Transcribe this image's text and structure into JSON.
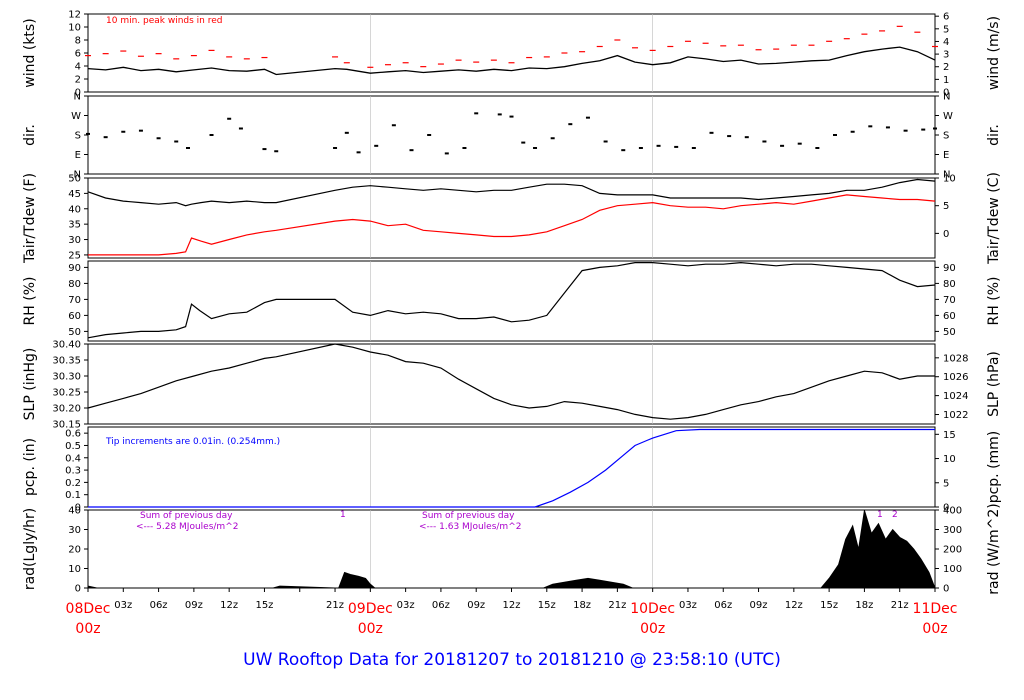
{
  "title": "UW Rooftop Data for 20181207  to  20181210 @ 23:58:10  (UTC)",
  "colors": {
    "axis": "#000000",
    "data": "#000000",
    "peak": "#ff0000",
    "tair": "#000000",
    "tdew": "#ff0000",
    "pcp": "#0000ff",
    "note_blue": "#0000ff",
    "note_purple": "#aa00cc",
    "day_label": "#ff0000",
    "title": "#0000ff"
  },
  "chart_data": [
    {
      "type": "line",
      "id": "wind",
      "ylabel_left": "wind (kts)",
      "ylabel_right": "wind (m/s)",
      "ylim": [
        0,
        12
      ],
      "yticks_left": [
        0,
        2,
        4,
        6,
        8,
        10,
        12
      ],
      "yticks_right": [
        "0",
        "1",
        "2",
        "3",
        "4",
        "5",
        "6"
      ],
      "annotation": "10 min. peak winds in red",
      "x": [
        0,
        1.5,
        3,
        4.5,
        6,
        7.5,
        9,
        10.5,
        12,
        13.5,
        15,
        16,
        21,
        22,
        24,
        25.5,
        27,
        28.5,
        30,
        31.5,
        33,
        34.5,
        36,
        37.5,
        39,
        40.5,
        42,
        43.5,
        45,
        46.5,
        48,
        49.5,
        51,
        52.5,
        54,
        55.5,
        57,
        58.5,
        60,
        61.5,
        63,
        64.5,
        66,
        67.5,
        69,
        70.5,
        72
      ],
      "series": [
        {
          "role": "mean",
          "values": [
            3.6,
            3.4,
            3.8,
            3.3,
            3.5,
            3.1,
            3.4,
            3.7,
            3.3,
            3.2,
            3.5,
            2.7,
            3.6,
            3.5,
            2.9,
            3.1,
            3.3,
            3.0,
            3.2,
            3.4,
            3.2,
            3.5,
            3.3,
            3.7,
            3.6,
            3.9,
            4.4,
            4.8,
            5.6,
            4.6,
            4.2,
            4.5,
            5.4,
            5.1,
            4.7,
            4.9,
            4.3,
            4.4,
            4.6,
            4.8,
            4.9,
            5.6,
            6.2,
            6.6,
            6.9,
            6.2,
            4.9
          ]
        },
        {
          "role": "peak",
          "values": [
            5.6,
            5.9,
            6.3,
            5.5,
            5.9,
            5.1,
            5.6,
            6.4,
            5.4,
            5.1,
            5.3,
            null,
            5.4,
            4.5,
            3.8,
            4.2,
            4.5,
            3.9,
            4.3,
            4.9,
            4.6,
            4.9,
            4.5,
            5.3,
            5.4,
            6.0,
            6.2,
            7.0,
            8.0,
            6.8,
            6.4,
            7.0,
            7.8,
            7.5,
            7.1,
            7.2,
            6.5,
            6.6,
            7.2,
            7.2,
            7.8,
            8.2,
            8.9,
            9.4,
            10.1,
            9.2,
            7.0
          ]
        }
      ]
    },
    {
      "type": "scatter",
      "id": "dir",
      "ylabel_left": "dir.",
      "ylabel_right": "dir.",
      "ylim": [
        0,
        360
      ],
      "yticks_left": [
        "N",
        "E",
        "S",
        "W",
        "N"
      ],
      "yticks_right": [
        "N",
        "E",
        "S",
        "W",
        "N"
      ],
      "x": [
        0,
        1.5,
        3,
        4.5,
        6,
        7.5,
        8.5,
        10.5,
        12,
        13,
        15,
        16,
        21,
        22,
        23,
        24.5,
        26,
        27.5,
        29,
        30.5,
        32,
        33,
        35,
        36,
        37,
        38,
        39.5,
        41,
        42.5,
        44,
        45.5,
        47,
        48.5,
        50,
        51.5,
        53,
        54.5,
        56,
        57.5,
        59,
        60.5,
        62,
        63.5,
        65,
        66.5,
        68,
        69.5,
        71,
        72
      ],
      "values": [
        185,
        170,
        195,
        200,
        165,
        150,
        120,
        180,
        255,
        210,
        115,
        105,
        120,
        190,
        100,
        130,
        225,
        110,
        180,
        95,
        120,
        280,
        275,
        265,
        145,
        120,
        165,
        230,
        260,
        150,
        110,
        120,
        130,
        125,
        120,
        190,
        175,
        170,
        150,
        130,
        140,
        120,
        180,
        195,
        220,
        215,
        200,
        205,
        210
      ]
    },
    {
      "type": "line",
      "id": "temp",
      "ylabel_left": "Tair/Tdew (F)",
      "ylabel_right": "Tair/Tdew (C)",
      "ylim": [
        24,
        50
      ],
      "yticks_left": [
        25,
        30,
        35,
        40,
        45,
        50
      ],
      "yticks_right": [
        "0",
        "5",
        "10"
      ],
      "x": [
        0,
        1.5,
        3,
        4.5,
        6,
        7.5,
        8.3,
        8.8,
        9.6,
        10.5,
        12,
        13.5,
        15,
        16,
        21,
        22.5,
        24,
        25.5,
        27,
        28.5,
        30,
        31.5,
        33,
        34.5,
        36,
        37.5,
        39,
        40.5,
        42,
        43.5,
        45,
        46.5,
        48,
        49.5,
        51,
        52.5,
        54,
        55.5,
        57,
        58.5,
        60,
        61.5,
        63,
        64.5,
        66,
        67.5,
        69,
        70.5,
        72
      ],
      "series": [
        {
          "name": "Tair",
          "values": [
            45.5,
            43.5,
            42.5,
            42.0,
            41.5,
            42.0,
            41.0,
            41.5,
            42.0,
            42.5,
            42.0,
            42.5,
            42.0,
            42.0,
            46.0,
            47.0,
            47.5,
            47.0,
            46.5,
            46.0,
            46.5,
            46.0,
            45.5,
            46.0,
            46.0,
            47.0,
            48.0,
            48.0,
            47.5,
            45.0,
            44.5,
            44.5,
            44.5,
            43.5,
            43.5,
            43.5,
            43.5,
            43.5,
            43.0,
            43.5,
            44.0,
            44.5,
            45.0,
            46.0,
            46.0,
            47.0,
            48.5,
            49.5,
            49.0
          ]
        },
        {
          "name": "Tdew",
          "values": [
            25.0,
            25.0,
            25.0,
            25.0,
            25.0,
            25.5,
            26.0,
            30.5,
            29.5,
            28.5,
            30.0,
            31.5,
            32.5,
            33.0,
            36.0,
            36.5,
            36.0,
            34.5,
            35.0,
            33.0,
            32.5,
            32.0,
            31.5,
            31.0,
            31.0,
            31.5,
            32.5,
            34.5,
            36.5,
            39.5,
            41.0,
            41.5,
            42.0,
            41.0,
            40.5,
            40.5,
            40.0,
            41.0,
            41.5,
            42.0,
            41.5,
            42.5,
            43.5,
            44.5,
            44.0,
            43.5,
            43.0,
            43.0,
            42.5
          ]
        }
      ]
    },
    {
      "type": "line",
      "id": "rh",
      "ylabel_left": "RH (%)",
      "ylabel_right": "RH (%)",
      "ylim": [
        44,
        94
      ],
      "yticks_left": [
        50,
        60,
        70,
        80,
        90
      ],
      "yticks_right": [
        "50",
        "60",
        "70",
        "80",
        "90"
      ],
      "x": [
        0,
        1.5,
        3,
        4.5,
        6,
        7.5,
        8.3,
        8.8,
        9.5,
        10.5,
        12,
        13.5,
        15,
        16,
        21,
        22.5,
        24,
        25.5,
        27,
        28.5,
        30,
        31.5,
        33,
        34.5,
        36,
        37.5,
        39,
        40.5,
        42,
        43.5,
        45,
        46.5,
        48,
        49.5,
        51,
        52.5,
        54,
        55.5,
        57,
        58.5,
        60,
        61.5,
        63,
        64.5,
        66,
        67.5,
        69,
        70.5,
        72
      ],
      "values": [
        46,
        48,
        49,
        50,
        50,
        51,
        53,
        67,
        63,
        58,
        61,
        62,
        68,
        70,
        70,
        62,
        60,
        63,
        61,
        62,
        61,
        58,
        58,
        59,
        56,
        57,
        60,
        74,
        88,
        90,
        91,
        93,
        93,
        92,
        91,
        92,
        92,
        93,
        92,
        91,
        92,
        92,
        91,
        90,
        89,
        88,
        82,
        78,
        79
      ]
    },
    {
      "type": "line",
      "id": "slp",
      "ylabel_left": "SLP (inHg)",
      "ylabel_right": "SLP (hPa)",
      "ylim": [
        30.15,
        30.4
      ],
      "yticks_left": [
        "30.15",
        "30.20",
        "30.25",
        "30.30",
        "30.35",
        "30.40"
      ],
      "yticks_right": [
        "1022",
        "1024",
        "1026",
        "1028"
      ],
      "x": [
        0,
        1.5,
        3,
        4.5,
        6,
        7.5,
        9,
        10.5,
        12,
        13.5,
        15,
        16,
        21,
        22.5,
        24,
        25.5,
        27,
        28.5,
        30,
        31.5,
        33,
        34.5,
        36,
        37.5,
        39,
        40.5,
        42,
        43.5,
        45,
        46.5,
        48,
        49.5,
        51,
        52.5,
        54,
        55.5,
        57,
        58.5,
        60,
        61.5,
        63,
        64.5,
        66,
        67.5,
        69,
        70.5,
        72
      ],
      "values": [
        30.2,
        30.215,
        30.23,
        30.245,
        30.265,
        30.285,
        30.3,
        30.315,
        30.325,
        30.34,
        30.355,
        30.36,
        30.4,
        30.39,
        30.375,
        30.365,
        30.345,
        30.34,
        30.325,
        30.29,
        30.26,
        30.23,
        30.21,
        30.2,
        30.205,
        30.22,
        30.215,
        30.205,
        30.195,
        30.18,
        30.17,
        30.165,
        30.17,
        30.18,
        30.195,
        30.21,
        30.22,
        30.235,
        30.245,
        30.265,
        30.285,
        30.3,
        30.315,
        30.31,
        30.29,
        30.3,
        30.3
      ]
    },
    {
      "type": "area",
      "id": "pcp",
      "ylabel_left": "pcp. (in)",
      "ylabel_right": "pcp. (mm)",
      "ylim": [
        0,
        0.65
      ],
      "yticks_left": [
        "0",
        "0.1",
        "0.2",
        "0.3",
        "0.4",
        "0.5",
        "0.6"
      ],
      "yticks_right": [
        "0",
        "5",
        "10",
        "15"
      ],
      "annotation": "Tip increments are 0.01in. (0.254mm.)",
      "x": [
        0,
        38,
        39.5,
        41,
        42.5,
        44,
        45.5,
        46.5,
        47.5,
        48,
        50,
        52,
        60,
        72
      ],
      "values": [
        0,
        0,
        0.05,
        0.12,
        0.2,
        0.3,
        0.42,
        0.5,
        0.54,
        0.56,
        0.62,
        0.63,
        0.63,
        0.63
      ]
    },
    {
      "type": "area",
      "id": "rad",
      "ylabel_left": "rad(Lgly/hr)",
      "ylabel_right": "rad (W/m^2)",
      "ylim": [
        0,
        40
      ],
      "yticks_left": [
        0,
        10,
        20,
        30,
        40
      ],
      "yticks_right": [
        "0",
        "100",
        "200",
        "300",
        "400"
      ],
      "annotations": [
        "Sum of previous day",
        "<--- 5.28 MJoules/m^2",
        "1",
        "Sum of previous day",
        "<--- 1.63 MJoules/m^2",
        "1",
        "2"
      ],
      "x": [
        0,
        0.8,
        15.7,
        16.3,
        21.3,
        21.8,
        22.3,
        23,
        23.6,
        24,
        24.4,
        38.7,
        39.5,
        40.5,
        41.5,
        42.5,
        43.5,
        44.5,
        45.5,
        46.3,
        62.3,
        63,
        63.8,
        64.4,
        65,
        65.5,
        66,
        66.6,
        67.2,
        67.8,
        68.4,
        69,
        69.6,
        70.2,
        70.8,
        71.5,
        72
      ],
      "values": [
        1,
        0,
        0,
        1,
        0,
        8,
        7,
        6,
        5,
        2,
        0,
        0,
        2,
        3,
        4,
        5,
        4,
        3,
        2,
        0,
        0,
        5,
        12,
        25,
        32,
        20,
        40,
        28,
        33,
        25,
        30,
        26,
        24,
        20,
        15,
        8,
        0
      ]
    }
  ],
  "x_axis": {
    "range_hours": [
      0,
      72
    ],
    "hour_labels": [
      "03z",
      "06z",
      "09z",
      "12z",
      "15z",
      "21z",
      "03z",
      "06z",
      "09z",
      "12z",
      "15z",
      "18z",
      "21z",
      "03z",
      "06z",
      "09z",
      "12z",
      "15z",
      "18z",
      "21z"
    ],
    "hour_positions": [
      3,
      6,
      9,
      12,
      15,
      21,
      27,
      30,
      33,
      36,
      39,
      42,
      45,
      51,
      54,
      57,
      60,
      63,
      66,
      69
    ],
    "day_labels": [
      {
        "day": "08Dec",
        "z": "00z",
        "hour": 0
      },
      {
        "day": "09Dec",
        "z": "00z",
        "hour": 24
      },
      {
        "day": "10Dec",
        "z": "00z",
        "hour": 48
      },
      {
        "day": "11Dec",
        "z": "00z",
        "hour": 72
      }
    ]
  }
}
